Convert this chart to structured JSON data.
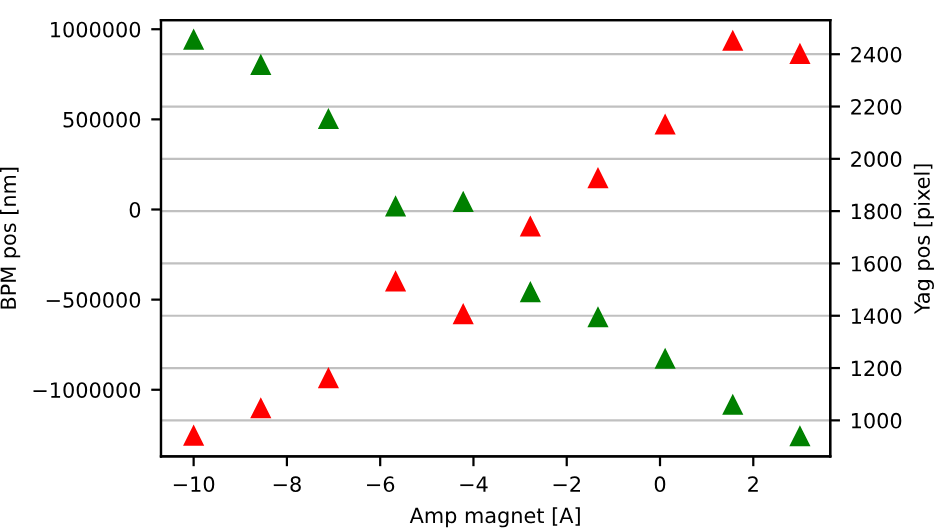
{
  "chart_data": {
    "type": "scatter",
    "xlabel": "Amp magnet [A]",
    "ylabel": "BPM pos [nm]",
    "y2label": "Yag pos [pixel]",
    "marker": "triangle",
    "grid": "y",
    "xlim": [
      -10.7,
      3.65
    ],
    "xticks": [
      -10,
      -8,
      -6,
      -4,
      -2,
      0,
      2
    ],
    "ylim": [
      -1370000,
      1050000
    ],
    "yticks": [
      -1000000,
      -500000,
      0,
      500000,
      1000000
    ],
    "y2lim": [
      862,
      2530
    ],
    "y2ticks": [
      1000,
      1200,
      1400,
      1600,
      1800,
      2000,
      2200,
      2400
    ],
    "series": [
      {
        "color": "#008000",
        "x": [
          -10,
          -8.56,
          -7.11,
          -5.67,
          -4.22,
          -2.78,
          -1.33,
          0.11,
          1.56,
          3.0
        ],
        "values": [
          940000,
          800000,
          500000,
          15000,
          40000,
          -460000,
          -600000,
          -830000,
          -1085000,
          -1260000
        ]
      },
      {
        "color": "#ff0000",
        "axis": "y2",
        "x": [
          -10,
          -8.56,
          -7.11,
          -5.67,
          -4.22,
          -2.78,
          -1.33,
          0.11,
          1.56,
          3.0
        ],
        "values": [
          940,
          1045,
          1160,
          1530,
          1405,
          1740,
          1925,
          2130,
          2450,
          2400
        ]
      }
    ]
  }
}
